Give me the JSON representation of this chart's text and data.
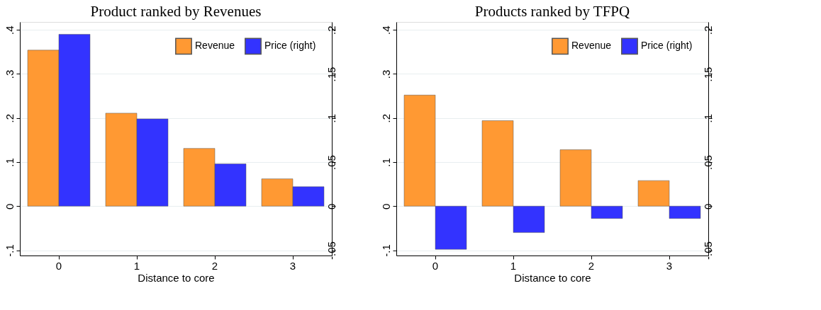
{
  "chart_data": [
    {
      "type": "bar",
      "title": "Product ranked by Revenues",
      "xlabel": "Distance to core",
      "categories": [
        "0",
        "1",
        "2",
        "3"
      ],
      "series": [
        {
          "name": "Revenue",
          "color": "#ff9933",
          "values": [
            0.354,
            0.211,
            0.131,
            0.062
          ]
        },
        {
          "name": "Price (right)",
          "color": "#3333ff",
          "axis": "y2",
          "values": [
            0.195,
            0.099,
            0.048,
            0.022
          ]
        }
      ],
      "ylim": [
        -0.112,
        0.418
      ],
      "yticks": [
        {
          "value": -0.1,
          "label": "-.1"
        },
        0,
        {
          "value": 0.1,
          "label": ".1"
        },
        {
          "value": 0.2,
          "label": ".2"
        },
        {
          "value": 0.3,
          "label": ".3"
        },
        {
          "value": 0.4,
          "label": ".4"
        }
      ],
      "y2lim": [
        -0.056,
        0.209
      ],
      "y2ticks": [
        {
          "value": -0.05,
          "label": "-.05"
        },
        0,
        {
          "value": 0.05,
          "label": ".05"
        },
        {
          "value": 0.1,
          "label": ".1"
        },
        {
          "value": 0.15,
          "label": ".15"
        },
        {
          "value": 0.2,
          "label": ".2"
        }
      ],
      "grid": "y",
      "legend": "top right"
    },
    {
      "type": "bar",
      "title": "Products ranked by TFPQ",
      "xlabel": "Distance to core",
      "categories": [
        "0",
        "1",
        "2",
        "3"
      ],
      "series": [
        {
          "name": "Revenue",
          "color": "#ff9933",
          "values": [
            0.252,
            0.194,
            0.128,
            0.058
          ]
        },
        {
          "name": "Price (right)",
          "color": "#3333ff",
          "axis": "y2",
          "values": [
            -0.049,
            -0.03,
            -0.014,
            -0.014
          ]
        }
      ],
      "ylim": [
        -0.112,
        0.418
      ],
      "yticks": [
        {
          "value": -0.1,
          "label": "-.1"
        },
        0,
        {
          "value": 0.1,
          "label": ".1"
        },
        {
          "value": 0.2,
          "label": ".2"
        },
        {
          "value": 0.3,
          "label": ".3"
        },
        {
          "value": 0.4,
          "label": ".4"
        }
      ],
      "y2lim": [
        -0.056,
        0.209
      ],
      "y2ticks": [
        {
          "value": -0.05,
          "label": "-.05"
        },
        0,
        {
          "value": 0.05,
          "label": ".05"
        },
        {
          "value": 0.1,
          "label": ".1"
        },
        {
          "value": 0.15,
          "label": ".15"
        },
        {
          "value": 0.2,
          "label": ".2"
        }
      ],
      "grid": "y",
      "legend": "top right"
    }
  ]
}
